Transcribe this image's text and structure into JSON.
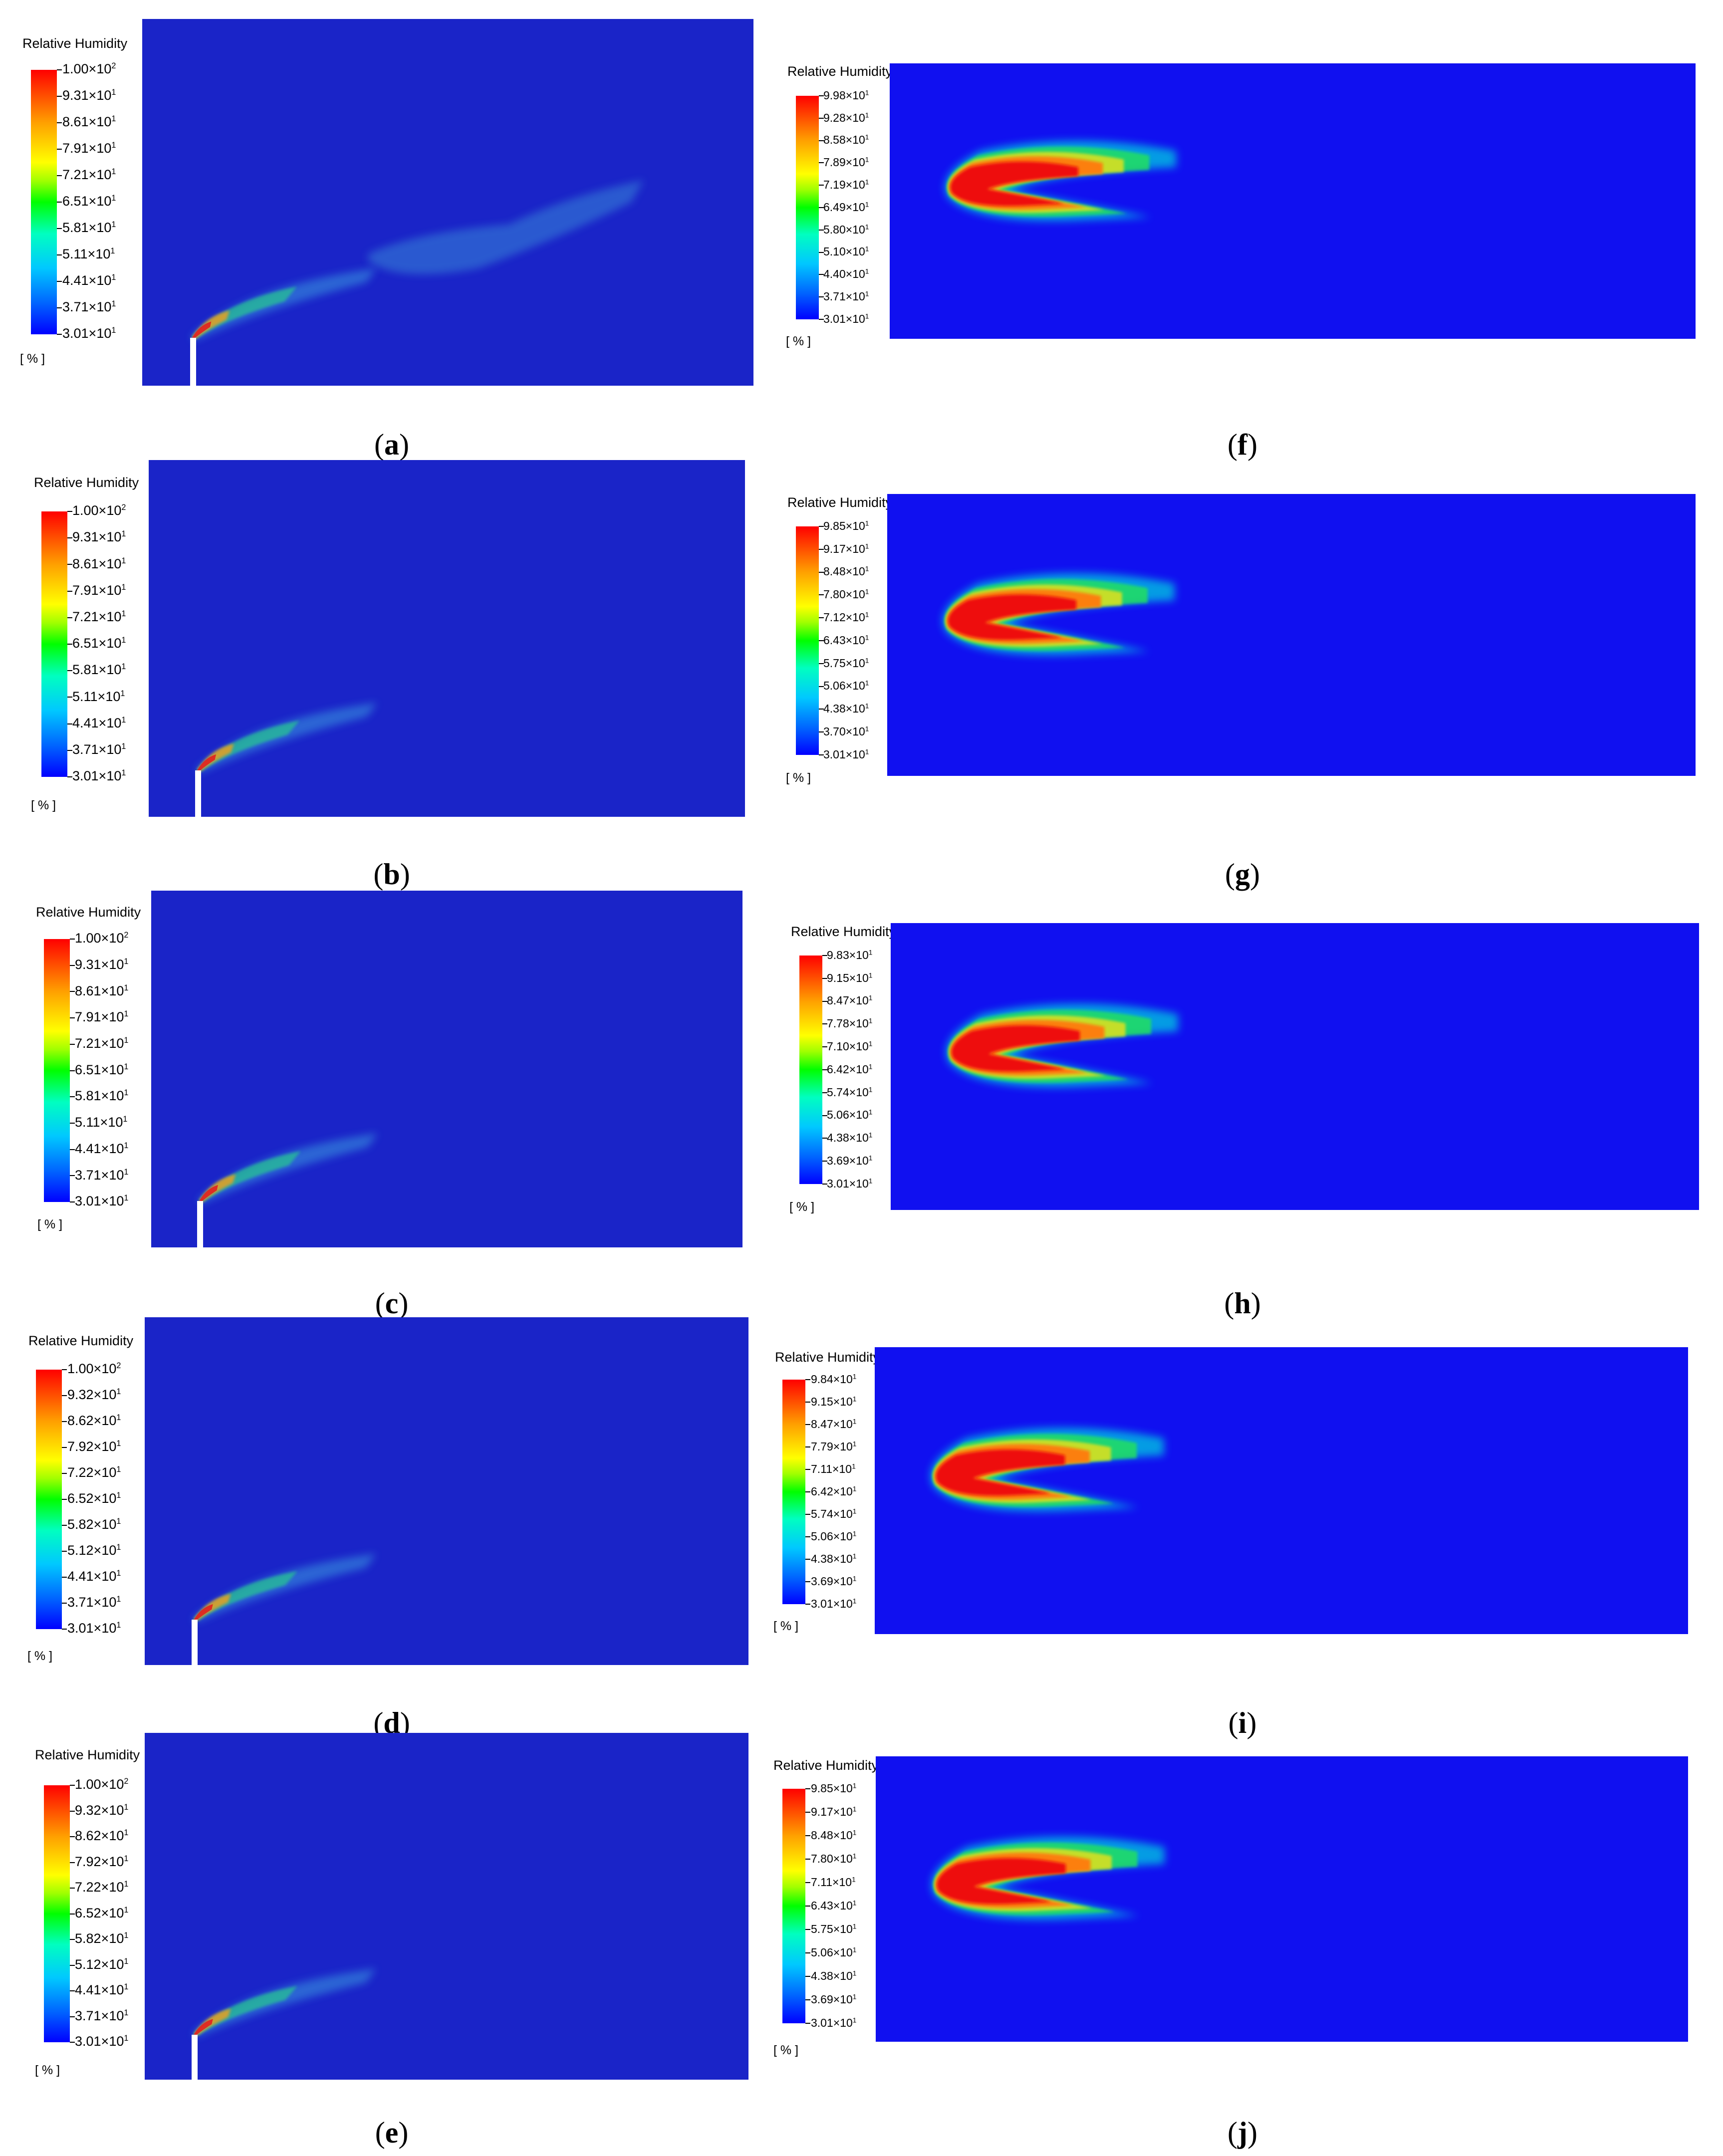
{
  "legend_title": "Relative Humidity",
  "unit": "[ % ]",
  "panels": [
    {
      "id": "a",
      "caption": "a",
      "ticks": [
        "1.00×10",
        "9.31×10",
        "8.61×10",
        "7.91×10",
        "7.21×10",
        "6.51×10",
        "5.81×10",
        "5.11×10",
        "4.41×10",
        "3.71×10",
        "3.01×10"
      ],
      "exps": [
        "2",
        "1",
        "1",
        "1",
        "1",
        "1",
        "1",
        "1",
        "1",
        "1",
        "1"
      ]
    },
    {
      "id": "b",
      "caption": "b",
      "ticks": [
        "1.00×10",
        "9.31×10",
        "8.61×10",
        "7.91×10",
        "7.21×10",
        "6.51×10",
        "5.81×10",
        "5.11×10",
        "4.41×10",
        "3.71×10",
        "3.01×10"
      ],
      "exps": [
        "2",
        "1",
        "1",
        "1",
        "1",
        "1",
        "1",
        "1",
        "1",
        "1",
        "1"
      ]
    },
    {
      "id": "c",
      "caption": "c",
      "ticks": [
        "1.00×10",
        "9.31×10",
        "8.61×10",
        "7.91×10",
        "7.21×10",
        "6.51×10",
        "5.81×10",
        "5.11×10",
        "4.41×10",
        "3.71×10",
        "3.01×10"
      ],
      "exps": [
        "2",
        "1",
        "1",
        "1",
        "1",
        "1",
        "1",
        "1",
        "1",
        "1",
        "1"
      ]
    },
    {
      "id": "d",
      "caption": "d",
      "ticks": [
        "1.00×10",
        "9.32×10",
        "8.62×10",
        "7.92×10",
        "7.22×10",
        "6.52×10",
        "5.82×10",
        "5.12×10",
        "4.41×10",
        "3.71×10",
        "3.01×10"
      ],
      "exps": [
        "2",
        "1",
        "1",
        "1",
        "1",
        "1",
        "1",
        "1",
        "1",
        "1",
        "1"
      ]
    },
    {
      "id": "e",
      "caption": "e",
      "ticks": [
        "1.00×10",
        "9.32×10",
        "8.62×10",
        "7.92×10",
        "7.22×10",
        "6.52×10",
        "5.82×10",
        "5.12×10",
        "4.41×10",
        "3.71×10",
        "3.01×10"
      ],
      "exps": [
        "2",
        "1",
        "1",
        "1",
        "1",
        "1",
        "1",
        "1",
        "1",
        "1",
        "1"
      ]
    },
    {
      "id": "f",
      "caption": "f",
      "ticks": [
        "9.98×10",
        "9.28×10",
        "8.58×10",
        "7.89×10",
        "7.19×10",
        "6.49×10",
        "5.80×10",
        "5.10×10",
        "4.40×10",
        "3.71×10",
        "3.01×10"
      ],
      "exps": [
        "1",
        "1",
        "1",
        "1",
        "1",
        "1",
        "1",
        "1",
        "1",
        "1",
        "1"
      ]
    },
    {
      "id": "g",
      "caption": "g",
      "ticks": [
        "9.85×10",
        "9.17×10",
        "8.48×10",
        "7.80×10",
        "7.12×10",
        "6.43×10",
        "5.75×10",
        "5.06×10",
        "4.38×10",
        "3.70×10",
        "3.01×10"
      ],
      "exps": [
        "1",
        "1",
        "1",
        "1",
        "1",
        "1",
        "1",
        "1",
        "1",
        "1",
        "1"
      ]
    },
    {
      "id": "h",
      "caption": "h",
      "ticks": [
        "9.83×10",
        "9.15×10",
        "8.47×10",
        "7.78×10",
        "7.10×10",
        "6.42×10",
        "5.74×10",
        "5.06×10",
        "4.38×10",
        "3.69×10",
        "3.01×10"
      ],
      "exps": [
        "1",
        "1",
        "1",
        "1",
        "1",
        "1",
        "1",
        "1",
        "1",
        "1",
        "1"
      ]
    },
    {
      "id": "i",
      "caption": "i",
      "ticks": [
        "9.84×10",
        "9.15×10",
        "8.47×10",
        "7.79×10",
        "7.11×10",
        "6.42×10",
        "5.74×10",
        "5.06×10",
        "4.38×10",
        "3.69×10",
        "3.01×10"
      ],
      "exps": [
        "1",
        "1",
        "1",
        "1",
        "1",
        "1",
        "1",
        "1",
        "1",
        "1",
        "1"
      ]
    },
    {
      "id": "j",
      "caption": "j",
      "ticks": [
        "9.85×10",
        "9.17×10",
        "8.48×10",
        "7.80×10",
        "7.11×10",
        "6.43×10",
        "5.75×10",
        "5.06×10",
        "4.38×10",
        "3.69×10",
        "3.01×10"
      ],
      "exps": [
        "1",
        "1",
        "1",
        "1",
        "1",
        "1",
        "1",
        "1",
        "1",
        "1",
        "1"
      ]
    }
  ]
}
